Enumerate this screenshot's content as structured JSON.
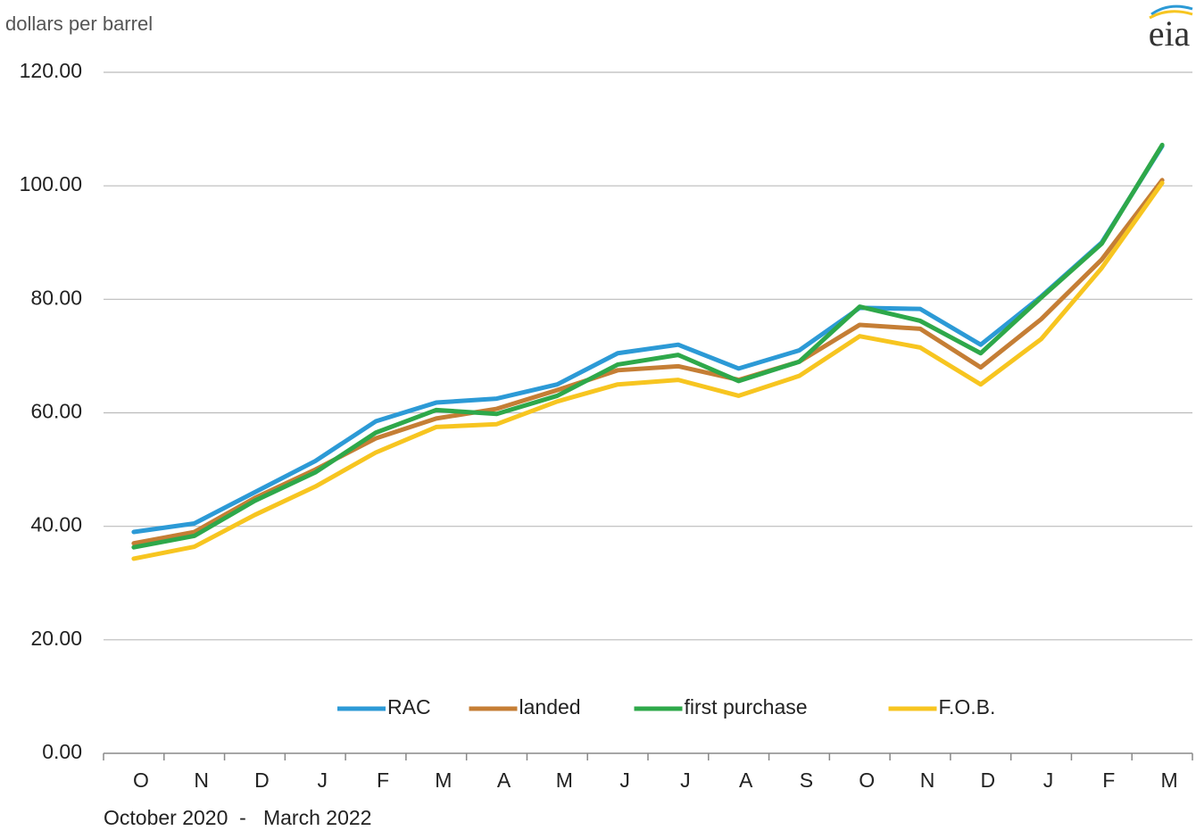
{
  "chart_data": {
    "type": "line",
    "y_label": "dollars per barrel",
    "x_note": "October 2020  -   March 2022",
    "logo": "eia",
    "categories": [
      "O",
      "N",
      "D",
      "J",
      "F",
      "M",
      "A",
      "M",
      "J",
      "J",
      "A",
      "S",
      "O",
      "N",
      "D",
      "J",
      "F",
      "M"
    ],
    "series": [
      {
        "name": "RAC",
        "color": "#2c9ad6",
        "values": [
          39,
          40.5,
          46,
          51.5,
          58.5,
          61.8,
          62.5,
          65,
          70.5,
          72,
          67.8,
          71,
          78.5,
          78.3,
          72,
          80.5,
          90,
          107
        ]
      },
      {
        "name": "landed",
        "color": "#c57e35",
        "values": [
          37,
          39,
          45,
          50,
          55.5,
          59,
          60.7,
          64,
          67.5,
          68.2,
          65.8,
          69,
          75.5,
          74.8,
          68,
          76.5,
          87,
          101
        ]
      },
      {
        "name": "first purchase",
        "color": "#2ea84a",
        "values": [
          36.3,
          38.3,
          44.5,
          49.5,
          56.5,
          60.5,
          59.8,
          63,
          68.5,
          70.2,
          65.6,
          69,
          78.7,
          76.2,
          70.5,
          80.3,
          89.8,
          107.2
        ]
      },
      {
        "name": "F.O.B.",
        "color": "#f7c520",
        "values": [
          34.3,
          36.4,
          42,
          47,
          53,
          57.5,
          58,
          62,
          65,
          65.8,
          63,
          66.5,
          73.5,
          71.5,
          65,
          73,
          85.5,
          100.5
        ]
      }
    ],
    "ylim": [
      0,
      120
    ],
    "yticks": [
      {
        "value": 0,
        "label": "0.00"
      },
      {
        "value": 20,
        "label": "20.00"
      },
      {
        "value": 40,
        "label": "40.00"
      },
      {
        "value": 60,
        "label": "60.00"
      },
      {
        "value": 80,
        "label": "80.00"
      },
      {
        "value": 100,
        "label": "100.00"
      },
      {
        "value": 120,
        "label": "120.00"
      }
    ],
    "grid": true,
    "legend": "bottom"
  }
}
